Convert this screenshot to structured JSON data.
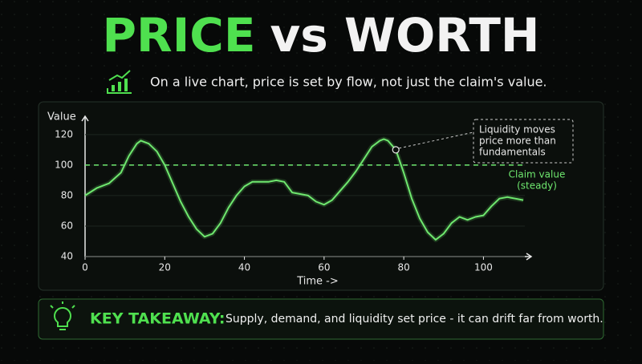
{
  "header": {
    "title_green": "PRICE",
    "title_white": "vs WORTH",
    "subtitle": "On a live chart, price is set by flow, not just the claim's value."
  },
  "chart_data": {
    "type": "line",
    "y_label": "Value",
    "x_label": "Time ->",
    "xlim": [
      0,
      112
    ],
    "xticks": [
      0,
      20,
      40,
      60,
      80,
      100
    ],
    "ylim": [
      40,
      132
    ],
    "yticks": [
      40,
      60,
      80,
      100,
      120
    ],
    "x": [
      0,
      3,
      6,
      9,
      11,
      13,
      14,
      16,
      18,
      20,
      22,
      24,
      26,
      28,
      30,
      32,
      34,
      36,
      38,
      40,
      42,
      44,
      46,
      48,
      50,
      52,
      54,
      56,
      58,
      60,
      62,
      64,
      66,
      68,
      70,
      72,
      74,
      75,
      76,
      78,
      80,
      82,
      84,
      86,
      88,
      90,
      92,
      94,
      96,
      98,
      100,
      102,
      104,
      106,
      108,
      110
    ],
    "values": [
      80,
      85,
      88,
      95,
      106,
      114,
      116,
      114,
      109,
      100,
      88,
      76,
      66,
      58,
      53,
      55,
      62,
      72,
      80,
      86,
      89,
      89,
      89,
      90,
      89,
      82,
      81,
      80,
      76,
      74,
      77,
      83,
      89,
      96,
      104,
      112,
      116,
      117,
      116,
      110,
      95,
      78,
      65,
      56,
      51,
      55,
      62,
      66,
      64,
      66,
      67,
      73,
      78,
      79,
      78,
      77
    ],
    "color": "#6fe86f",
    "reference_value": 100,
    "reference_label": [
      "Claim value",
      "(steady)"
    ],
    "annotation": [
      "Liquidity moves",
      "price more than",
      "fundamentals"
    ]
  },
  "takeaway": {
    "label": "KEY TAKEAWAY:",
    "text": "Supply, demand, and liquidity set price - it can drift far from worth."
  }
}
